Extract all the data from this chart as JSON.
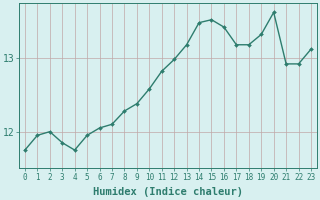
{
  "xlabel": "Humidex (Indice chaleur)",
  "x": [
    0,
    1,
    2,
    3,
    4,
    5,
    6,
    7,
    8,
    9,
    10,
    11,
    12,
    13,
    14,
    15,
    16,
    17,
    18,
    19,
    20,
    21,
    22,
    23
  ],
  "y": [
    11.75,
    11.95,
    12.0,
    11.85,
    11.75,
    11.95,
    12.05,
    12.1,
    12.28,
    12.38,
    12.58,
    12.82,
    12.98,
    13.18,
    13.48,
    13.52,
    13.42,
    13.18,
    13.18,
    13.32,
    13.62,
    12.92,
    12.92,
    13.12
  ],
  "line_color": "#2e7d6e",
  "marker": "D",
  "marker_size": 2.0,
  "linewidth": 1.0,
  "bg_color": "#d8f0f0",
  "grid_color": "#c0a8a8",
  "axis_color": "#2e7d6e",
  "tick_color": "#2e7d6e",
  "label_color": "#2e7d6e",
  "ylim": [
    11.5,
    13.75
  ],
  "yticks": [
    12,
    13
  ],
  "xlim": [
    -0.5,
    23.5
  ],
  "xticks": [
    0,
    1,
    2,
    3,
    4,
    5,
    6,
    7,
    8,
    9,
    10,
    11,
    12,
    13,
    14,
    15,
    16,
    17,
    18,
    19,
    20,
    21,
    22,
    23
  ],
  "tick_fontsize": 5.5,
  "xlabel_fontsize": 7.5
}
